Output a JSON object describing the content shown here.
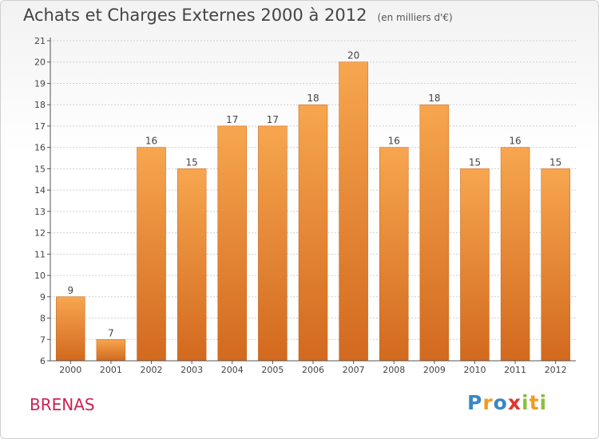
{
  "title": "Achats et Charges Externes 2000 à 2012",
  "subtitle": "(en milliers d'€)",
  "commune": "BRENAS",
  "logo": {
    "text": "Proxiti",
    "letters": [
      {
        "ch": "P",
        "color": "#3a86c8"
      },
      {
        "ch": "r",
        "color": "#f29b22"
      },
      {
        "ch": "o",
        "color": "#3a86c8"
      },
      {
        "ch": "x",
        "color": "#e6332a"
      },
      {
        "ch": "i",
        "color": "#8cbf3f"
      },
      {
        "ch": "t",
        "color": "#f29b22"
      },
      {
        "ch": "i",
        "color": "#8cbf3f"
      }
    ]
  },
  "colors": {
    "bar_top": "#f7a64f",
    "bar_bottom": "#d2691e",
    "bar_edge": "#c4621c",
    "grid": "#cfcfcf",
    "axis": "#555555",
    "text": "#444444",
    "commune": "#cc2255"
  },
  "chart_data": {
    "type": "bar",
    "categories": [
      "2000",
      "2001",
      "2002",
      "2003",
      "2004",
      "2005",
      "2006",
      "2007",
      "2008",
      "2009",
      "2010",
      "2011",
      "2012"
    ],
    "values": [
      9,
      7,
      16,
      15,
      17,
      17,
      18,
      20,
      16,
      18,
      15,
      16,
      15
    ],
    "yticks": [
      6,
      7,
      8,
      9,
      10,
      11,
      12,
      13,
      14,
      15,
      16,
      17,
      18,
      19,
      20,
      21
    ],
    "ylim": [
      6,
      21
    ],
    "xlabel": "",
    "ylabel": "",
    "grid": true
  }
}
